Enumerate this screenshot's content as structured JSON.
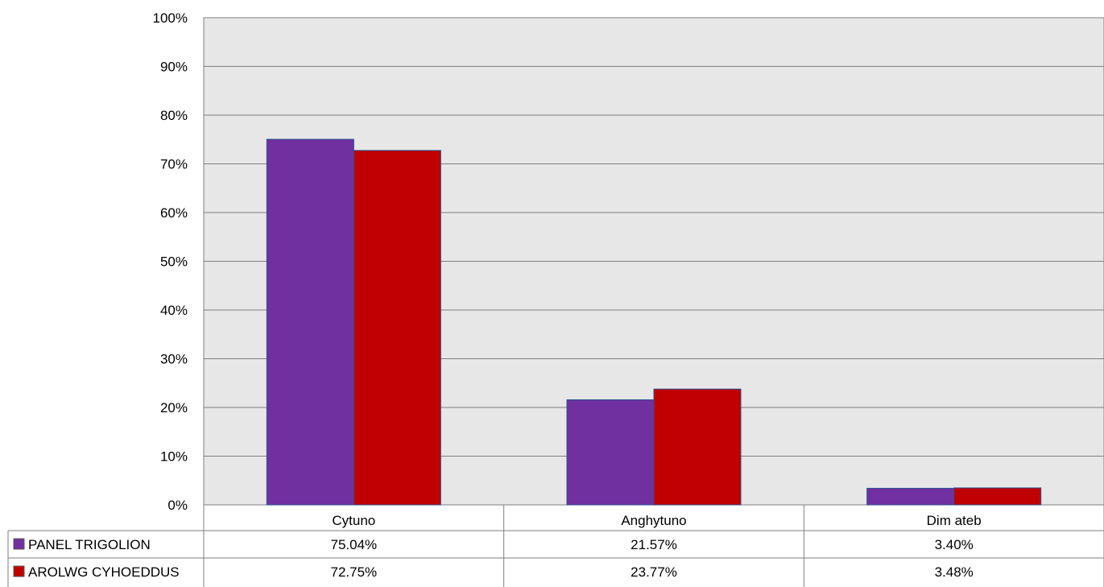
{
  "chart_data": {
    "type": "bar",
    "title": "",
    "xlabel": "",
    "ylabel": "",
    "categories": [
      "Cytuno",
      "Anghytuno",
      "Dim ateb"
    ],
    "series": [
      {
        "name": "PANEL TRIGOLION",
        "color": "#7030A0",
        "values": [
          75.04,
          21.57,
          3.4
        ],
        "labels": [
          "75.04%",
          "21.57%",
          "3.40%"
        ]
      },
      {
        "name": "AROLWG CYHOEDDUS",
        "color": "#C00000",
        "values": [
          72.75,
          23.77,
          3.48
        ],
        "labels": [
          "72.75%",
          "23.77%",
          "3.48%"
        ]
      }
    ],
    "ylim": [
      0,
      100
    ],
    "yticks": [
      "0%",
      "10%",
      "20%",
      "30%",
      "40%",
      "50%",
      "60%",
      "70%",
      "80%",
      "90%",
      "100%"
    ],
    "grid": true,
    "legend": "data-table-left",
    "plot_background": "#E7E7E7"
  }
}
